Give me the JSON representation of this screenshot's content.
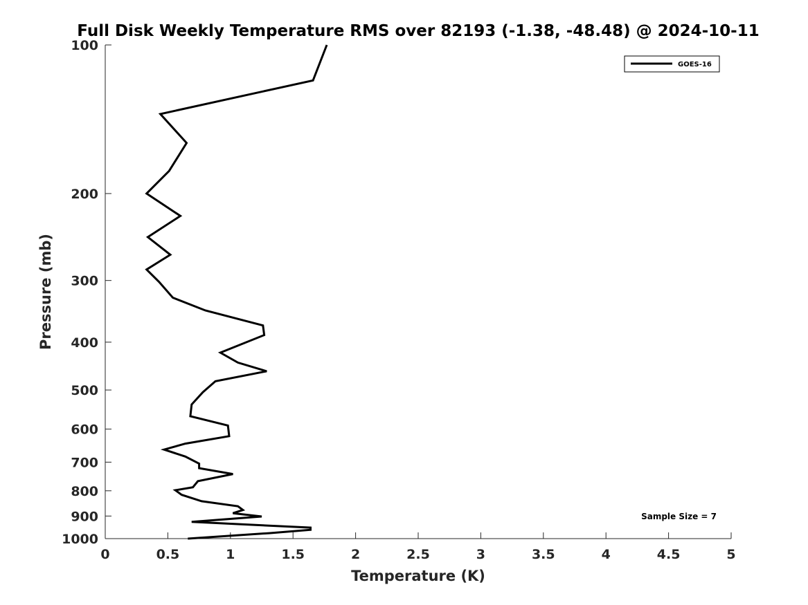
{
  "chart_data": {
    "type": "line",
    "title": "Full Disk Weekly Temperature RMS over 82193 (-1.38, -48.48) @ 2024-10-11",
    "xlabel": "Temperature (K)",
    "ylabel": "Pressure (mb)",
    "xlim": [
      0,
      5
    ],
    "ylim": [
      100,
      1000
    ],
    "y_scale": "log",
    "y_reversed": true,
    "xticks": [
      "0",
      "0.5",
      "1",
      "1.5",
      "2",
      "2.5",
      "3",
      "3.5",
      "4",
      "4.5",
      "5"
    ],
    "yticks": [
      "100",
      "200",
      "300",
      "400",
      "500",
      "600",
      "700",
      "800",
      "900",
      "1000"
    ],
    "grid": false,
    "legend_position": "top-right",
    "annotation": "Sample Size = 7",
    "line_color": "#000000",
    "series": [
      {
        "name": "GOES-16",
        "points": [
          [
            1.77,
            100
          ],
          [
            1.66,
            118
          ],
          [
            0.44,
            138
          ],
          [
            0.65,
            158
          ],
          [
            0.51,
            180
          ],
          [
            0.33,
            200
          ],
          [
            0.6,
            222
          ],
          [
            0.34,
            245
          ],
          [
            0.52,
            266
          ],
          [
            0.33,
            285
          ],
          [
            0.43,
            302
          ],
          [
            0.54,
            325
          ],
          [
            0.8,
            345
          ],
          [
            1.26,
            370
          ],
          [
            1.27,
            387
          ],
          [
            0.92,
            420
          ],
          [
            1.06,
            440
          ],
          [
            1.29,
            458
          ],
          [
            0.88,
            480
          ],
          [
            0.78,
            505
          ],
          [
            0.69,
            535
          ],
          [
            0.68,
            565
          ],
          [
            0.98,
            590
          ],
          [
            0.99,
            620
          ],
          [
            0.64,
            642
          ],
          [
            0.47,
            660
          ],
          [
            0.64,
            682
          ],
          [
            0.75,
            705
          ],
          [
            0.75,
            720
          ],
          [
            1.02,
            740
          ],
          [
            0.74,
            765
          ],
          [
            0.7,
            787
          ],
          [
            0.56,
            798
          ],
          [
            0.61,
            815
          ],
          [
            0.77,
            840
          ],
          [
            1.06,
            860
          ],
          [
            1.1,
            875
          ],
          [
            1.02,
            888
          ],
          [
            1.25,
            902
          ],
          [
            0.69,
            925
          ],
          [
            1.64,
            950
          ],
          [
            1.64,
            960
          ],
          [
            1.31,
            975
          ],
          [
            0.66,
            1000
          ]
        ]
      }
    ]
  }
}
